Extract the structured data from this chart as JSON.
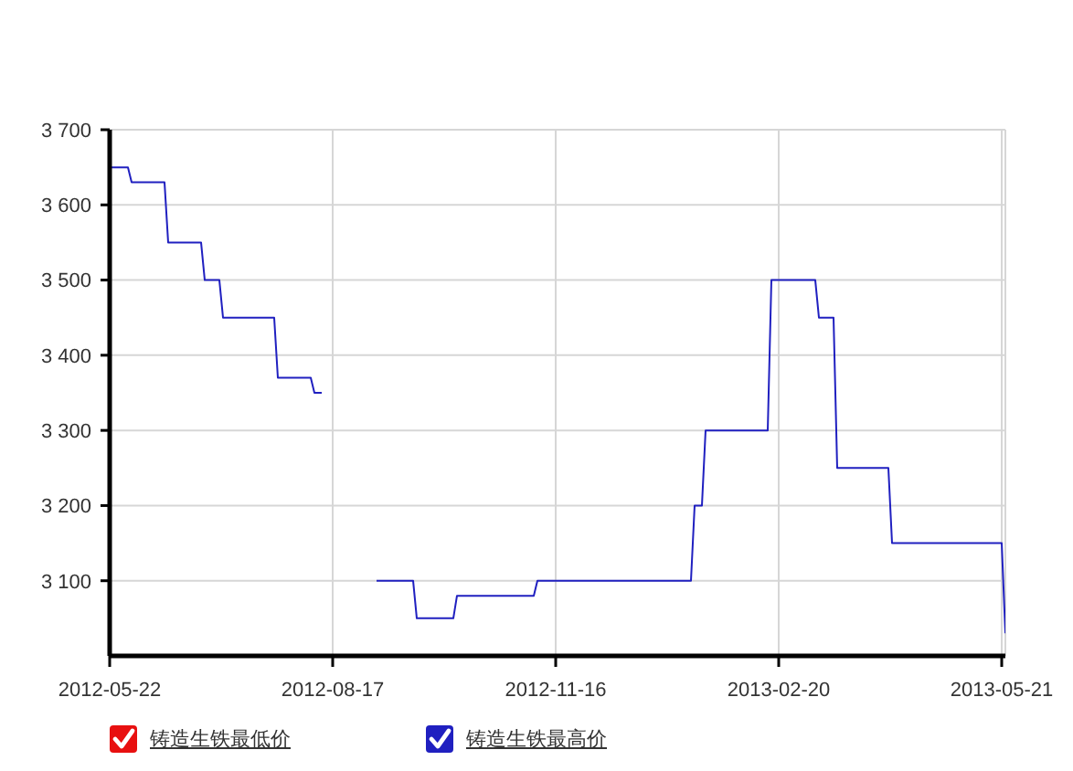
{
  "chart_data": {
    "type": "line",
    "categories": [
      "2012-05-22",
      null,
      null,
      null,
      null,
      null,
      null,
      null,
      null,
      null,
      null,
      null,
      null,
      null,
      null,
      null,
      null,
      null,
      null,
      null,
      null,
      null,
      null,
      null,
      null,
      null,
      null,
      null,
      null,
      null,
      null,
      null,
      null,
      null,
      null,
      null,
      null,
      null,
      null,
      null,
      null,
      null,
      null,
      null,
      null,
      null,
      null,
      null,
      null,
      null,
      null,
      null,
      null,
      null,
      null,
      null,
      null,
      null,
      null,
      null,
      null,
      "2012-08-17",
      null,
      null,
      null,
      null,
      null,
      null,
      null,
      null,
      null,
      null,
      null,
      null,
      null,
      null,
      null,
      null,
      null,
      null,
      null,
      null,
      null,
      null,
      null,
      null,
      null,
      null,
      null,
      null,
      null,
      null,
      null,
      null,
      null,
      null,
      null,
      null,
      null,
      null,
      null,
      null,
      null,
      null,
      null,
      null,
      null,
      null,
      null,
      null,
      null,
      null,
      null,
      null,
      null,
      null,
      null,
      null,
      null,
      null,
      null,
      null,
      "2012-11-16",
      null,
      null,
      null,
      null,
      null,
      null,
      null,
      null,
      null,
      null,
      null,
      null,
      null,
      null,
      null,
      null,
      null,
      null,
      null,
      null,
      null,
      null,
      null,
      null,
      null,
      null,
      null,
      null,
      null,
      null,
      null,
      null,
      null,
      null,
      null,
      null,
      null,
      null,
      null,
      null,
      null,
      null,
      null,
      null,
      null,
      null,
      null,
      null,
      null,
      null,
      null,
      null,
      null,
      null,
      null,
      null,
      null,
      null,
      null,
      null,
      "2013-02-20",
      null,
      null,
      null,
      null,
      null,
      null,
      null,
      null,
      null,
      null,
      null,
      null,
      null,
      null,
      null,
      null,
      null,
      null,
      null,
      null,
      null,
      null,
      null,
      null,
      null,
      null,
      null,
      null,
      null,
      null,
      null,
      null,
      null,
      null,
      null,
      null,
      null,
      null,
      null,
      null,
      null,
      null,
      null,
      null,
      null,
      null,
      null,
      null,
      null,
      null,
      null,
      null,
      null,
      null,
      null,
      null,
      null,
      null,
      null,
      null,
      "2013-05-21",
      null
    ],
    "series": [
      {
        "name": "铸造生铁最低价",
        "color": "#e81010",
        "values": [
          null,
          null,
          null,
          null,
          null,
          null,
          null,
          null,
          null,
          null,
          null,
          null,
          null,
          null,
          null,
          null,
          null,
          null,
          null,
          null,
          null,
          null,
          null,
          null,
          null,
          null,
          null,
          null,
          null,
          null,
          null,
          null,
          null,
          null,
          null,
          null,
          null,
          null,
          null,
          null,
          null,
          null,
          null,
          null,
          null,
          null,
          null,
          null,
          null,
          null,
          null,
          null,
          null,
          null,
          null,
          null,
          null,
          null,
          null,
          null,
          null,
          null,
          null,
          null,
          null,
          null,
          null,
          null,
          null,
          null,
          null,
          null,
          null,
          null,
          null,
          null,
          null,
          null,
          null,
          null,
          null,
          null,
          null,
          null,
          null,
          null,
          null,
          null,
          null,
          null,
          null,
          null,
          null,
          null,
          null,
          null,
          null,
          null,
          null,
          null,
          null,
          null,
          null,
          null,
          null,
          null,
          null,
          null,
          null,
          null,
          null,
          null,
          null,
          null,
          null,
          null,
          null,
          null,
          null,
          null,
          null,
          null,
          null,
          null,
          null,
          null,
          null,
          null,
          null,
          null,
          null,
          null,
          null,
          null,
          null,
          null,
          null,
          null,
          null,
          null,
          null,
          null,
          null,
          null,
          null,
          null,
          null,
          null,
          null,
          null,
          null,
          null,
          null,
          null,
          null,
          null,
          null,
          null,
          null,
          null,
          null,
          null,
          null,
          null,
          null,
          null,
          null,
          null,
          null,
          null,
          null,
          null,
          null,
          null,
          null,
          null,
          null,
          null,
          null,
          null,
          null,
          null,
          null,
          null,
          null,
          null,
          null,
          null,
          null,
          null,
          null,
          null,
          null,
          null,
          null,
          null,
          null,
          null,
          null,
          null,
          null,
          null,
          null,
          null,
          null,
          null,
          null,
          null,
          null,
          null,
          null,
          null,
          null,
          null,
          null,
          null,
          null,
          null,
          null,
          null,
          null,
          null,
          null,
          null,
          null,
          null,
          null,
          null,
          null,
          null,
          null,
          null,
          null,
          null,
          null,
          null,
          null,
          null,
          null,
          null,
          null,
          null,
          null,
          null,
          null,
          null
        ]
      },
      {
        "name": "铸造生铁最高价",
        "color": "#2020c0",
        "values": [
          3650,
          3650,
          3650,
          3650,
          3650,
          3650,
          3630,
          3630,
          3630,
          3630,
          3630,
          3630,
          3630,
          3630,
          3630,
          3630,
          3550,
          3550,
          3550,
          3550,
          3550,
          3550,
          3550,
          3550,
          3550,
          3550,
          3500,
          3500,
          3500,
          3500,
          3500,
          3450,
          3450,
          3450,
          3450,
          3450,
          3450,
          3450,
          3450,
          3450,
          3450,
          3450,
          3450,
          3450,
          3450,
          3450,
          3370,
          3370,
          3370,
          3370,
          3370,
          3370,
          3370,
          3370,
          3370,
          3370,
          3350,
          3350,
          3350,
          null,
          null,
          null,
          null,
          null,
          null,
          null,
          null,
          null,
          null,
          null,
          null,
          null,
          null,
          3100,
          3100,
          3100,
          3100,
          3100,
          3100,
          3100,
          3100,
          3100,
          3100,
          3100,
          3050,
          3050,
          3050,
          3050,
          3050,
          3050,
          3050,
          3050,
          3050,
          3050,
          3050,
          3080,
          3080,
          3080,
          3080,
          3080,
          3080,
          3080,
          3080,
          3080,
          3080,
          3080,
          3080,
          3080,
          3080,
          3080,
          3080,
          3080,
          3080,
          3080,
          3080,
          3080,
          3080,
          3100,
          3100,
          3100,
          3100,
          3100,
          3100,
          3100,
          3100,
          3100,
          3100,
          3100,
          3100,
          3100,
          3100,
          3100,
          3100,
          3100,
          3100,
          3100,
          3100,
          3100,
          3100,
          3100,
          3100,
          3100,
          3100,
          3100,
          3100,
          3100,
          3100,
          3100,
          3100,
          3100,
          3100,
          3100,
          3100,
          3100,
          3100,
          3100,
          3100,
          3100,
          3100,
          3100,
          3200,
          3200,
          3200,
          3300,
          3300,
          3300,
          3300,
          3300,
          3300,
          3300,
          3300,
          3300,
          3300,
          3300,
          3300,
          3300,
          3300,
          3300,
          3300,
          3300,
          3300,
          3500,
          3500,
          3500,
          3500,
          3500,
          3500,
          3500,
          3500,
          3500,
          3500,
          3500,
          3500,
          3500,
          3450,
          3450,
          3450,
          3450,
          3450,
          3250,
          3250,
          3250,
          3250,
          3250,
          3250,
          3250,
          3250,
          3250,
          3250,
          3250,
          3250,
          3250,
          3250,
          3250,
          3150,
          3150,
          3150,
          3150,
          3150,
          3150,
          3150,
          3150,
          3150,
          3150,
          3150,
          3150,
          3150,
          3150,
          3150,
          3150,
          3150,
          3150,
          3150,
          3150,
          3150,
          3150,
          3150,
          3150,
          3150,
          3150,
          3150,
          3150,
          3150,
          3150,
          3150,
          3030
        ]
      }
    ],
    "ylim": [
      3000,
      3700
    ],
    "yticks": [
      {
        "value": 3100,
        "label": "3 100"
      },
      {
        "value": 3200,
        "label": "3 200"
      },
      {
        "value": 3300,
        "label": "3 300"
      },
      {
        "value": 3400,
        "label": "3 400"
      },
      {
        "value": 3500,
        "label": "3 500"
      },
      {
        "value": 3600,
        "label": "3 600"
      },
      {
        "value": 3700,
        "label": "3 700"
      }
    ],
    "grid": true,
    "legend": "bottom"
  }
}
